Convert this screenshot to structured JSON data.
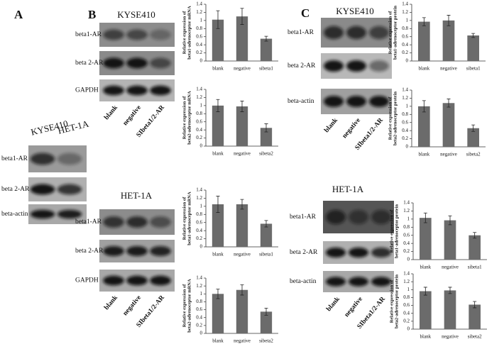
{
  "figure": {
    "panel_labels": [
      "A",
      "B",
      "C"
    ],
    "blots": [
      {
        "lanes": [
          "KYSE410",
          "HET-1A"
        ],
        "rows": [
          "beta1-AR",
          "beta 2-AR",
          "beta-actin"
        ]
      },
      {
        "title": "KYSE410",
        "rows": [
          "beta1-AR",
          "beta 2-AR",
          "GAPDH"
        ],
        "lanes": [
          "blank",
          "negative",
          "SIbeta1/2-AR"
        ]
      },
      {
        "title": "HET-1A",
        "rows": [
          "beta1-AR",
          "beta 2-AR",
          "GAPDH"
        ],
        "lanes": [
          "blank",
          "negative",
          "SIbeta1/2-AR"
        ]
      },
      {
        "title": "KYSE410",
        "rows": [
          "beta1-AR",
          "beta 2-AR",
          "beta-actin"
        ],
        "lanes": [
          "blank",
          "negative",
          "SIbeta1/2-AR"
        ]
      },
      {
        "title": "HET-1A",
        "rows": [
          "beta1-AR",
          "beta 2-AR",
          "beta-actin"
        ],
        "lanes": [
          "blank",
          "negative",
          "SIbeta1/2-AR"
        ]
      }
    ]
  },
  "chart_data": [
    {
      "type": "bar",
      "ylabel": [
        "Relative expression of",
        "beta1-adrenoceptor mRNA"
      ],
      "categories": [
        "blank",
        "negative",
        "sibeta1"
      ],
      "values": [
        1.02,
        1.1,
        0.55
      ],
      "errors": [
        0.22,
        0.2,
        0.06
      ],
      "color": "#6b6b6b",
      "ylim": [
        0,
        1.4
      ],
      "yticks": [
        0,
        0.2,
        0.4,
        0.6,
        0.8,
        1,
        1.2,
        1.4
      ]
    },
    {
      "type": "bar",
      "ylabel": [
        "Relative expression of",
        "beta2-adrenoceptor mRNA"
      ],
      "categories": [
        "blank",
        "negative",
        "sibeta2"
      ],
      "values": [
        1.0,
        0.98,
        0.45
      ],
      "errors": [
        0.15,
        0.13,
        0.1
      ],
      "color": "#6b6b6b",
      "ylim": [
        0,
        1.4
      ],
      "yticks": [
        0,
        0.2,
        0.4,
        0.6,
        0.8,
        1,
        1.2,
        1.4
      ]
    },
    {
      "type": "bar",
      "ylabel": [
        "Relative expression of",
        "beta1-adrenoceptor mRNA"
      ],
      "categories": [
        "blank",
        "negative",
        "sibeta1"
      ],
      "values": [
        1.05,
        1.05,
        0.57
      ],
      "errors": [
        0.2,
        0.12,
        0.08
      ],
      "color": "#6b6b6b",
      "ylim": [
        0,
        1.4
      ],
      "yticks": [
        0,
        0.2,
        0.4,
        0.6,
        0.8,
        1,
        1.2,
        1.4
      ]
    },
    {
      "type": "bar",
      "ylabel": [
        "Relative expression of",
        "beta2-adrenoceptor mRNA"
      ],
      "categories": [
        "blank",
        "negative",
        "sibeta2"
      ],
      "values": [
        1.0,
        1.1,
        0.55
      ],
      "errors": [
        0.12,
        0.13,
        0.09
      ],
      "color": "#6b6b6b",
      "ylim": [
        0,
        1.4
      ],
      "yticks": [
        0,
        0.2,
        0.4,
        0.6,
        0.8,
        1,
        1.2,
        1.4
      ]
    },
    {
      "type": "bar",
      "ylabel": [
        "Relative expression of",
        "beta1-adrenoceptor protein"
      ],
      "categories": [
        "blank",
        "negative",
        "sibeta1"
      ],
      "values": [
        0.97,
        1.0,
        0.63
      ],
      "errors": [
        0.1,
        0.13,
        0.05
      ],
      "color": "#6b6b6b",
      "ylim": [
        0,
        1.4
      ],
      "yticks": [
        0,
        0.2,
        0.4,
        0.6,
        0.8,
        1,
        1.2,
        1.4
      ]
    },
    {
      "type": "bar",
      "ylabel": [
        "Relative expression of",
        "beta2-adrenoceptor protein"
      ],
      "categories": [
        "blank",
        "negative",
        "sibeta2"
      ],
      "values": [
        1.0,
        1.08,
        0.46
      ],
      "errors": [
        0.14,
        0.1,
        0.08
      ],
      "color": "#6b6b6b",
      "ylim": [
        0,
        1.4
      ],
      "yticks": [
        0,
        0.2,
        0.4,
        0.6,
        0.8,
        1,
        1.2,
        1.4
      ]
    },
    {
      "type": "bar",
      "ylabel": [
        "Relative expression of",
        "beta1-adrenoceptor protein"
      ],
      "categories": [
        "blank",
        "negative",
        "sibeta1"
      ],
      "values": [
        1.03,
        0.97,
        0.6
      ],
      "errors": [
        0.12,
        0.11,
        0.07
      ],
      "color": "#6b6b6b",
      "ylim": [
        0,
        1.4
      ],
      "yticks": [
        0,
        0.2,
        0.4,
        0.6,
        0.8,
        1,
        1.2,
        1.4
      ]
    },
    {
      "type": "bar",
      "ylabel": [
        "Relative expression of",
        "beta2-adrenoceptor protein"
      ],
      "categories": [
        "blank",
        "negative",
        "sibeta2"
      ],
      "values": [
        0.96,
        0.98,
        0.62
      ],
      "errors": [
        0.1,
        0.08,
        0.08
      ],
      "color": "#6b6b6b",
      "ylim": [
        0,
        1.4
      ],
      "yticks": [
        0,
        0.2,
        0.4,
        0.6,
        0.8,
        1,
        1.2,
        1.4
      ]
    }
  ]
}
